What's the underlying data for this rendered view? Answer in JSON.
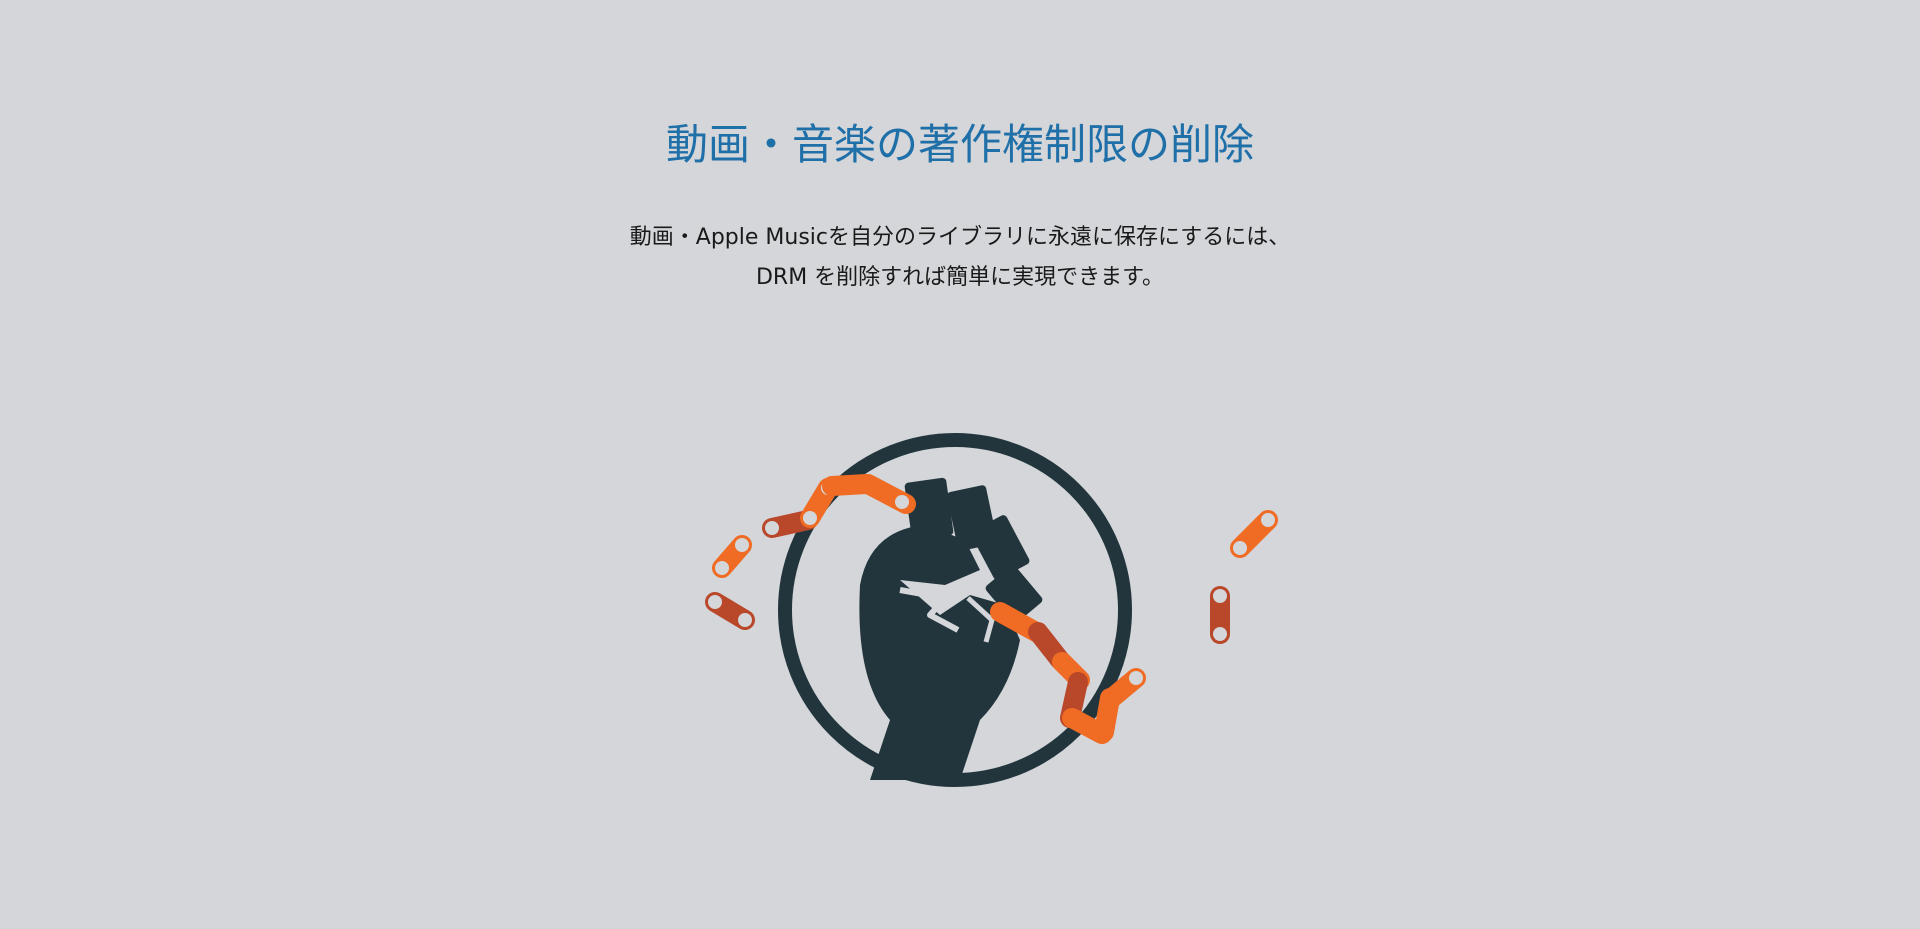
{
  "hero": {
    "title": "動画・音楽の著作権制限の削除",
    "description_line1": "動画・Apple Musicを自分のライブラリに永遠に保存にするには、",
    "description_line2": "DRM を削除すれば簡単に実現できます。"
  },
  "illustration": {
    "icon": "broken-chain-fist-icon",
    "colors": {
      "circle": "#22353d",
      "fist": "#22353d",
      "chain_light": "#f06b23",
      "chain_dark": "#b9472a",
      "chain_hole": "#d4d6d9"
    }
  }
}
